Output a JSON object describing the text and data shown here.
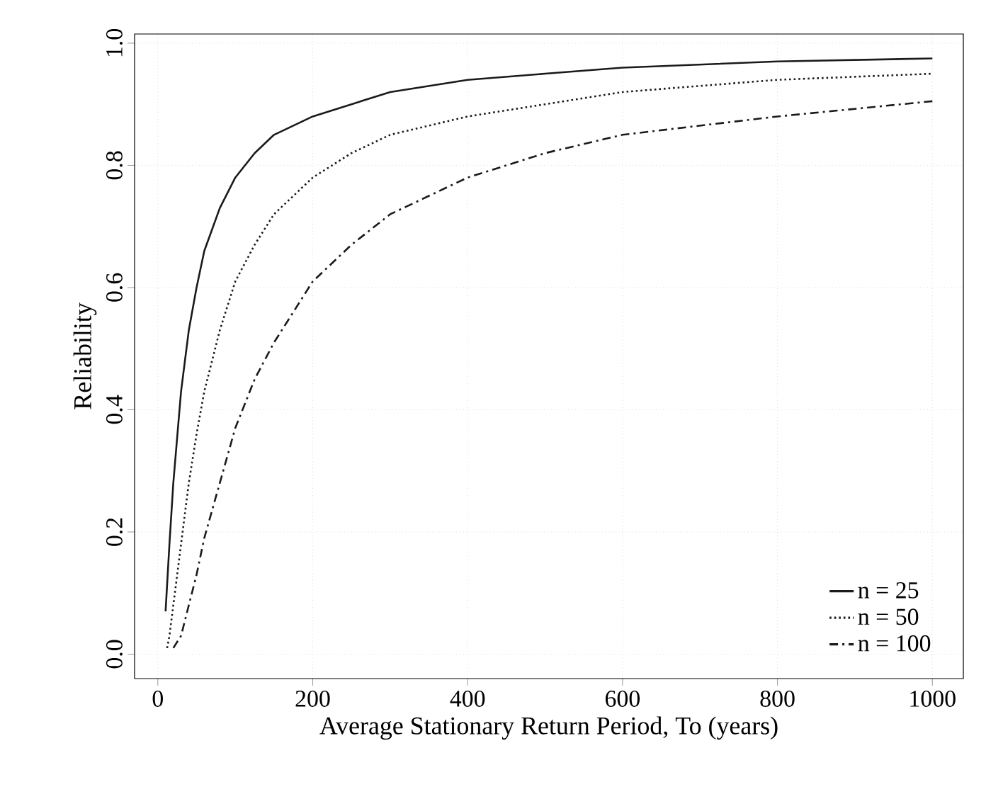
{
  "chart_data": {
    "type": "line",
    "xlabel": "Average Stationary Return Period, To (years)",
    "ylabel": "Reliability",
    "xlim": [
      -30,
      1040
    ],
    "ylim": [
      -0.04,
      1.015
    ],
    "xticks": [
      0,
      200,
      400,
      600,
      800,
      1000
    ],
    "yticks": [
      {
        "value": 0,
        "label": "0.0"
      },
      0.2,
      0.4,
      0.6,
      0.8,
      {
        "value": 1,
        "label": "1.0"
      }
    ],
    "grid": true,
    "legend": "bottom right",
    "marker": "none",
    "series": [
      {
        "name": "n = 25",
        "color": "#1a1a1a",
        "line_style": "solid",
        "x": [
          10,
          15,
          20,
          30,
          40,
          50,
          60,
          80,
          100,
          125,
          150,
          200,
          250,
          300,
          400,
          500,
          600,
          800,
          1000
        ],
        "values": [
          0.07,
          0.18,
          0.28,
          0.43,
          0.53,
          0.6,
          0.66,
          0.73,
          0.78,
          0.82,
          0.85,
          0.88,
          0.9,
          0.92,
          0.94,
          0.95,
          0.96,
          0.97,
          0.975
        ]
      },
      {
        "name": "n = 50",
        "color": "#1a1a1a",
        "line_style": "dotted",
        "x": [
          12,
          15,
          20,
          30,
          40,
          50,
          60,
          80,
          100,
          125,
          150,
          200,
          250,
          300,
          400,
          500,
          600,
          800,
          1000
        ],
        "values": [
          0.01,
          0.03,
          0.08,
          0.18,
          0.28,
          0.36,
          0.43,
          0.53,
          0.61,
          0.67,
          0.72,
          0.78,
          0.82,
          0.85,
          0.88,
          0.9,
          0.92,
          0.94,
          0.95
        ]
      },
      {
        "name": "n = 100",
        "color": "#1a1a1a",
        "line_style": "dashdot",
        "x": [
          20,
          25,
          30,
          40,
          50,
          60,
          80,
          100,
          125,
          150,
          200,
          250,
          300,
          400,
          500,
          600,
          800,
          1000
        ],
        "values": [
          0.01,
          0.02,
          0.03,
          0.08,
          0.13,
          0.19,
          0.28,
          0.37,
          0.45,
          0.51,
          0.61,
          0.67,
          0.72,
          0.78,
          0.82,
          0.85,
          0.88,
          0.905
        ]
      }
    ]
  }
}
